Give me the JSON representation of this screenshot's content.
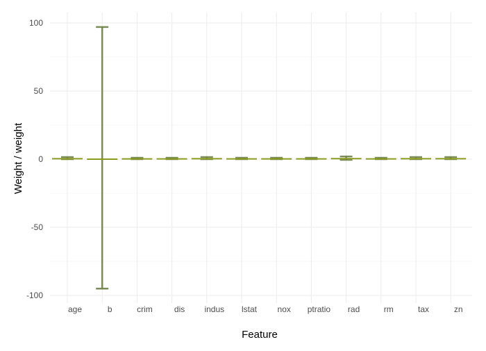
{
  "chart_data": {
    "type": "errorbar",
    "xlabel": "Feature",
    "ylabel": "Weight / weight",
    "categories": [
      "age",
      "b",
      "crim",
      "dis",
      "indus",
      "lstat",
      "nox",
      "ptratio",
      "rad",
      "rm",
      "tax",
      "zn"
    ],
    "series": [
      {
        "values": [
          0.3,
          0,
          0.2,
          0.2,
          0.3,
          0.2,
          0.2,
          0.2,
          0.4,
          0.2,
          0.3,
          0.3
        ],
        "upper": [
          1.5,
          97,
          1.0,
          1.0,
          1.5,
          1.0,
          1.0,
          1.0,
          2.0,
          1.0,
          1.5,
          1.5
        ],
        "lower": [
          0,
          -95,
          0,
          0,
          0,
          0,
          0,
          0,
          -0.5,
          0,
          0,
          0
        ]
      }
    ],
    "yticks": [
      -100,
      -50,
      0,
      50,
      100
    ],
    "ytick_labels": [
      "-100",
      "-50",
      "0",
      "50",
      "100"
    ],
    "ylim": [
      -105,
      105
    ],
    "grid": true,
    "colors": {
      "errorbar": "#6b7f45",
      "line": "#8a9a1f"
    }
  }
}
